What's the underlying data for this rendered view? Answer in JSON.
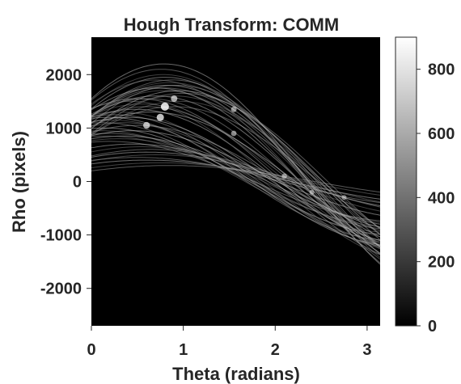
{
  "chart_data": {
    "type": "heatmap",
    "title": "Hough Transform: COMM",
    "xlabel": "Theta (radians)",
    "ylabel": "Rho (pixels)",
    "xlim": [
      0,
      3.1416
    ],
    "ylim": [
      -2700,
      2700
    ],
    "x_ticks": [
      0,
      1,
      2,
      3
    ],
    "x_tick_labels": [
      "0",
      "1",
      "2",
      "3"
    ],
    "y_ticks": [
      2000,
      1000,
      0,
      -1000,
      -2000
    ],
    "y_tick_labels": [
      "2000",
      "1000",
      "0",
      "-1000",
      "-2000"
    ],
    "colorbar": {
      "colormap": "gray",
      "limits": [
        0,
        900
      ],
      "ticks": [
        800,
        600,
        400,
        200,
        0
      ],
      "tick_labels": [
        "800",
        "600",
        "400",
        "200",
        "0"
      ]
    },
    "sinusoids": [
      {
        "amplitude": 1450,
        "phase": 0.55
      },
      {
        "amplitude": 1550,
        "phase": 0.62
      },
      {
        "amplitude": 1600,
        "phase": 0.7
      },
      {
        "amplitude": 1700,
        "phase": 0.78
      },
      {
        "amplitude": 1750,
        "phase": 0.8
      },
      {
        "amplitude": 1800,
        "phase": 0.82
      },
      {
        "amplitude": 1850,
        "phase": 0.85
      },
      {
        "amplitude": 1900,
        "phase": 0.88
      },
      {
        "amplitude": 1950,
        "phase": 0.8
      },
      {
        "amplitude": 2000,
        "phase": 0.78
      },
      {
        "amplitude": 2100,
        "phase": 0.76
      },
      {
        "amplitude": 2200,
        "phase": 0.79
      },
      {
        "amplitude": 1500,
        "phase": 0.95
      },
      {
        "amplitude": 1650,
        "phase": 1.0
      },
      {
        "amplitude": 1350,
        "phase": 0.48
      },
      {
        "amplitude": 1500,
        "phase": 0.42
      },
      {
        "amplitude": 1400,
        "phase": 0.9
      },
      {
        "amplitude": 1750,
        "phase": 0.7
      },
      {
        "amplitude": 1300,
        "phase": 0.3
      },
      {
        "amplitude": 1250,
        "phase": 0.25
      },
      {
        "amplitude": 1200,
        "phase": 0.18
      },
      {
        "amplitude": 1150,
        "phase": 0.22
      },
      {
        "amplitude": 1100,
        "phase": 0.12
      },
      {
        "amplitude": 1000,
        "phase": 0.15
      },
      {
        "amplitude": 950,
        "phase": 0.1
      },
      {
        "amplitude": 900,
        "phase": 0.2
      },
      {
        "amplitude": 850,
        "phase": 0.35
      },
      {
        "amplitude": 800,
        "phase": 0.3
      },
      {
        "amplitude": 750,
        "phase": 0.2
      },
      {
        "amplitude": 700,
        "phase": 0.45
      },
      {
        "amplitude": 650,
        "phase": 0.55
      },
      {
        "amplitude": 600,
        "phase": 0.65
      },
      {
        "amplitude": 550,
        "phase": 0.6
      },
      {
        "amplitude": 500,
        "phase": 0.7
      },
      {
        "amplitude": 450,
        "phase": 0.5
      },
      {
        "amplitude": 400,
        "phase": 0.6
      },
      {
        "amplitude": 350,
        "phase": 0.75
      },
      {
        "amplitude": 300,
        "phase": 0.85
      },
      {
        "amplitude": 1700,
        "phase": 0.95
      },
      {
        "amplitude": 1600,
        "phase": 0.9
      },
      {
        "amplitude": 1400,
        "phase": 0.6
      },
      {
        "amplitude": 1300,
        "phase": 0.65
      },
      {
        "amplitude": 1900,
        "phase": 0.7
      },
      {
        "amplitude": 1800,
        "phase": 0.92
      },
      {
        "amplitude": 1200,
        "phase": 0.4
      },
      {
        "amplitude": 1100,
        "phase": 0.35
      },
      {
        "amplitude": 1050,
        "phase": 0.5
      },
      {
        "amplitude": 950,
        "phase": 0.45
      },
      {
        "amplitude": 850,
        "phase": 0.15
      },
      {
        "amplitude": 1550,
        "phase": 0.5
      }
    ],
    "hotspots": [
      {
        "theta": 0.8,
        "rho": 1400,
        "value": 900
      },
      {
        "theta": 0.75,
        "rho": 1200,
        "value": 750
      },
      {
        "theta": 0.6,
        "rho": 1050,
        "value": 650
      },
      {
        "theta": 0.9,
        "rho": 1550,
        "value": 600
      },
      {
        "theta": 1.55,
        "rho": 1350,
        "value": 450
      },
      {
        "theta": 1.55,
        "rho": 900,
        "value": 420
      },
      {
        "theta": 2.1,
        "rho": 100,
        "value": 380
      },
      {
        "theta": 2.4,
        "rho": -200,
        "value": 330
      },
      {
        "theta": 2.75,
        "rho": -300,
        "value": 300
      }
    ]
  }
}
